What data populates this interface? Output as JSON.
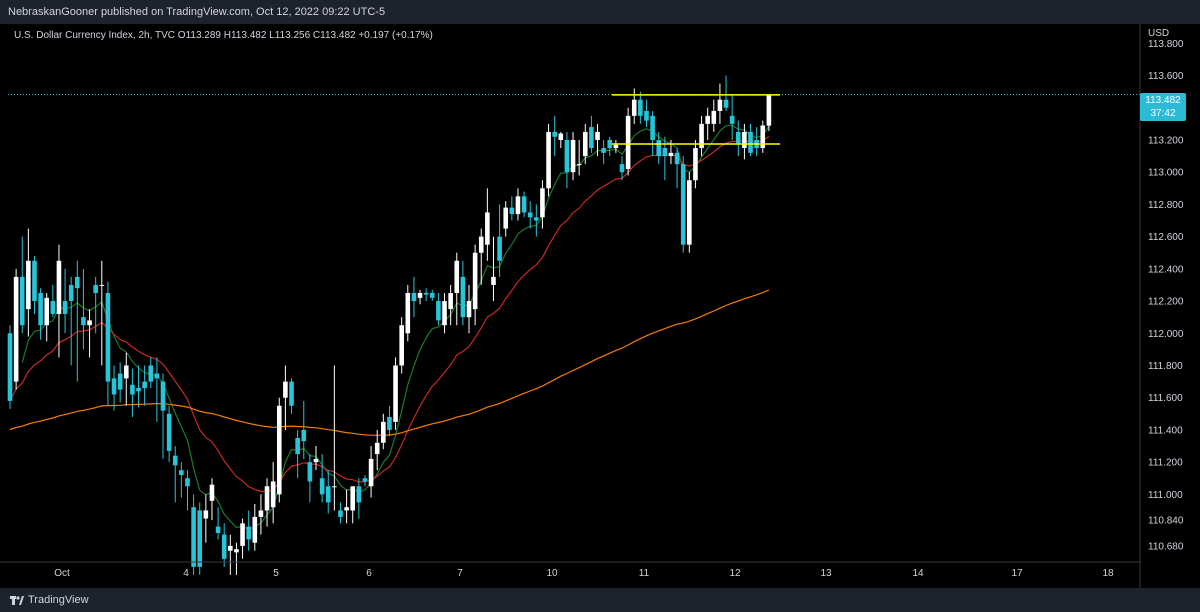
{
  "header": {
    "published_text": "NebraskanGooner published on TradingView.com, Oct 12, 2022 09:22 UTC-5"
  },
  "legend": {
    "symbol": "U.S. Dollar Currency Index, 2h, TVC",
    "o_label": "O",
    "o": "113.289",
    "h_label": "H",
    "h": "113.482",
    "l_label": "L",
    "l": "113.256",
    "c_label": "C",
    "c": "113.482",
    "change": "+0.197 (+0.17%)"
  },
  "price_axis": {
    "currency": "USD",
    "last_price": "113.482",
    "countdown": "37:42"
  },
  "footer": {
    "brand": "TradingView"
  },
  "chart_data": {
    "type": "candlestick",
    "ylim": [
      110.58,
      113.92
    ],
    "y_ticks": [
      "113.800",
      "113.600",
      "113.400",
      "113.200",
      "113.000",
      "112.800",
      "112.600",
      "112.400",
      "112.200",
      "112.000",
      "111.800",
      "111.600",
      "111.400",
      "111.200",
      "111.000",
      "110.840",
      "110.680"
    ],
    "x_ticks": [
      "Oct",
      "4",
      "5",
      "6",
      "7",
      "10",
      "11",
      "12",
      "13",
      "14",
      "17",
      "18"
    ],
    "colors": {
      "up": "#ffffff",
      "down": "#26c6da",
      "ma_fast": "#1b7a2e",
      "ma_mid": "#c62828",
      "ma_slow": "#f57c00",
      "levels": "#ffff00",
      "last_price_line": "#2bbbd6"
    },
    "horizontal_levels": [
      113.48,
      113.175
    ],
    "candles": [
      [
        112.0,
        112.05,
        111.53,
        111.58
      ],
      [
        111.7,
        112.4,
        111.65,
        112.35
      ],
      [
        112.35,
        112.6,
        112.0,
        112.05
      ],
      [
        112.15,
        112.65,
        111.98,
        112.45
      ],
      [
        112.45,
        112.48,
        112.12,
        112.2
      ],
      [
        112.25,
        112.28,
        111.96,
        112.05
      ],
      [
        112.05,
        112.25,
        111.95,
        112.22
      ],
      [
        112.2,
        112.3,
        112.1,
        112.12
      ],
      [
        112.12,
        112.55,
        111.85,
        112.45
      ],
      [
        112.2,
        112.4,
        112.0,
        112.12
      ],
      [
        112.3,
        112.35,
        111.8,
        112.2
      ],
      [
        112.35,
        112.45,
        111.7,
        112.28
      ],
      [
        112.1,
        112.4,
        111.9,
        112.05
      ],
      [
        112.05,
        112.15,
        111.85,
        112.08
      ],
      [
        112.3,
        112.35,
        112.0,
        112.25
      ],
      [
        112.3,
        112.45,
        111.8,
        112.3
      ],
      [
        112.25,
        112.32,
        111.55,
        111.7
      ],
      [
        111.72,
        111.8,
        111.52,
        111.62
      ],
      [
        111.75,
        111.82,
        111.57,
        111.65
      ],
      [
        111.72,
        111.88,
        111.55,
        111.8
      ],
      [
        111.68,
        111.78,
        111.48,
        111.62
      ],
      [
        111.66,
        111.8,
        111.54,
        111.64
      ],
      [
        111.7,
        111.8,
        111.55,
        111.66
      ],
      [
        111.8,
        111.85,
        111.66,
        111.7
      ],
      [
        111.75,
        111.85,
        111.45,
        111.72
      ],
      [
        111.7,
        111.75,
        111.22,
        111.52
      ],
      [
        111.5,
        111.55,
        111.2,
        111.27
      ],
      [
        111.24,
        111.3,
        110.95,
        111.18
      ],
      [
        111.15,
        111.2,
        110.98,
        111.12
      ],
      [
        111.1,
        111.15,
        110.9,
        111.05
      ],
      [
        110.92,
        111.0,
        110.5,
        110.55
      ],
      [
        110.9,
        110.95,
        110.5,
        110.55
      ],
      [
        110.85,
        111.0,
        110.7,
        110.9
      ],
      [
        110.96,
        111.1,
        110.84,
        111.06
      ],
      [
        110.8,
        110.92,
        110.72,
        110.76
      ],
      [
        110.75,
        110.82,
        110.55,
        110.6
      ],
      [
        110.65,
        110.75,
        110.5,
        110.68
      ],
      [
        110.64,
        110.7,
        110.5,
        110.66
      ],
      [
        110.68,
        110.85,
        110.6,
        110.82
      ],
      [
        110.8,
        110.9,
        110.65,
        110.72
      ],
      [
        110.7,
        110.94,
        110.65,
        110.86
      ],
      [
        110.86,
        111.0,
        110.75,
        110.9
      ],
      [
        110.9,
        111.1,
        110.8,
        111.05
      ],
      [
        110.92,
        111.2,
        110.82,
        111.08
      ],
      [
        111.0,
        111.6,
        110.95,
        111.55
      ],
      [
        111.6,
        111.8,
        111.4,
        111.7
      ],
      [
        111.7,
        111.72,
        111.5,
        111.55
      ],
      [
        111.35,
        111.4,
        111.1,
        111.25
      ],
      [
        111.4,
        111.58,
        111.22,
        111.33
      ],
      [
        111.2,
        111.25,
        110.95,
        111.08
      ],
      [
        111.2,
        111.3,
        111.15,
        111.22
      ],
      [
        111.1,
        111.25,
        110.95,
        111.0
      ],
      [
        111.05,
        111.15,
        110.88,
        110.95
      ],
      [
        111.05,
        111.8,
        110.9,
        111.05
      ],
      [
        110.9,
        110.95,
        110.82,
        110.86
      ],
      [
        110.9,
        111.03,
        110.82,
        110.92
      ],
      [
        110.9,
        111.05,
        110.82,
        111.05
      ],
      [
        111.05,
        111.1,
        110.85,
        110.95
      ],
      [
        111.1,
        111.12,
        111.05,
        111.08
      ],
      [
        111.05,
        111.3,
        110.98,
        111.22
      ],
      [
        111.25,
        111.4,
        111.15,
        111.32
      ],
      [
        111.32,
        111.5,
        111.28,
        111.45
      ],
      [
        111.48,
        111.55,
        111.36,
        111.4
      ],
      [
        111.45,
        111.85,
        111.4,
        111.8
      ],
      [
        111.8,
        112.1,
        111.75,
        112.05
      ],
      [
        112.0,
        112.3,
        111.95,
        112.25
      ],
      [
        112.25,
        112.35,
        112.1,
        112.2
      ],
      [
        112.22,
        112.27,
        112.18,
        112.25
      ],
      [
        112.25,
        112.28,
        112.2,
        112.24
      ],
      [
        112.25,
        112.27,
        112.2,
        112.22
      ],
      [
        112.2,
        112.25,
        112.05,
        112.08
      ],
      [
        112.05,
        112.25,
        112.0,
        112.2
      ],
      [
        112.15,
        112.3,
        112.05,
        112.25
      ],
      [
        112.25,
        112.5,
        112.05,
        112.45
      ],
      [
        112.35,
        112.45,
        112.05,
        112.1
      ],
      [
        112.1,
        112.3,
        112.0,
        112.2
      ],
      [
        112.15,
        112.55,
        112.05,
        112.5
      ],
      [
        112.5,
        112.65,
        112.3,
        112.6
      ],
      [
        112.55,
        112.9,
        112.45,
        112.75
      ],
      [
        112.3,
        112.6,
        112.2,
        112.35
      ],
      [
        112.6,
        112.8,
        112.35,
        112.45
      ],
      [
        112.65,
        112.82,
        112.6,
        112.78
      ],
      [
        112.78,
        112.85,
        112.7,
        112.74
      ],
      [
        112.74,
        112.9,
        112.7,
        112.85
      ],
      [
        112.85,
        112.88,
        112.72,
        112.75
      ],
      [
        112.75,
        112.82,
        112.65,
        112.72
      ],
      [
        112.72,
        112.8,
        112.6,
        112.7
      ],
      [
        112.72,
        112.95,
        112.65,
        112.9
      ],
      [
        112.9,
        113.3,
        112.85,
        113.25
      ],
      [
        113.25,
        113.35,
        113.1,
        113.22
      ],
      [
        113.2,
        113.25,
        113.15,
        113.24
      ],
      [
        113.2,
        113.25,
        112.9,
        113.0
      ],
      [
        113.0,
        113.25,
        112.95,
        113.2
      ],
      [
        113.05,
        113.2,
        112.98,
        113.05
      ],
      [
        113.1,
        113.3,
        113.05,
        113.25
      ],
      [
        113.28,
        113.35,
        113.12,
        113.15
      ],
      [
        113.2,
        113.3,
        113.1,
        113.25
      ],
      [
        113.15,
        113.2,
        113.05,
        113.12
      ],
      [
        113.2,
        113.22,
        113.1,
        113.15
      ],
      [
        113.15,
        113.2,
        113.12,
        113.17
      ],
      [
        113.05,
        113.1,
        112.95,
        113.0
      ],
      [
        113.02,
        113.4,
        112.98,
        113.35
      ],
      [
        113.35,
        113.52,
        113.3,
        113.45
      ],
      [
        113.45,
        113.5,
        113.3,
        113.35
      ],
      [
        113.38,
        113.45,
        113.28,
        113.32
      ],
      [
        113.35,
        113.38,
        113.1,
        113.2
      ],
      [
        113.2,
        113.25,
        113.05,
        113.1
      ],
      [
        113.15,
        113.22,
        112.95,
        113.1
      ],
      [
        113.1,
        113.2,
        113.05,
        113.12
      ],
      [
        113.12,
        113.15,
        112.9,
        113.05
      ],
      [
        113.05,
        113.1,
        112.5,
        112.55
      ],
      [
        112.55,
        113.0,
        112.5,
        112.95
      ],
      [
        112.95,
        113.2,
        112.9,
        113.15
      ],
      [
        113.15,
        113.35,
        113.1,
        113.3
      ],
      [
        113.3,
        113.4,
        113.2,
        113.35
      ],
      [
        113.3,
        113.45,
        113.25,
        113.38
      ],
      [
        113.38,
        113.55,
        113.3,
        113.45
      ],
      [
        113.45,
        113.6,
        113.38,
        113.4
      ],
      [
        113.35,
        113.48,
        113.2,
        113.3
      ],
      [
        113.25,
        113.32,
        113.1,
        113.18
      ],
      [
        113.15,
        113.3,
        113.08,
        113.25
      ],
      [
        113.25,
        113.3,
        113.1,
        113.12
      ],
      [
        113.2,
        113.28,
        113.1,
        113.15
      ],
      [
        113.15,
        113.32,
        113.12,
        113.29
      ],
      [
        113.289,
        113.482,
        113.256,
        113.482
      ]
    ]
  }
}
